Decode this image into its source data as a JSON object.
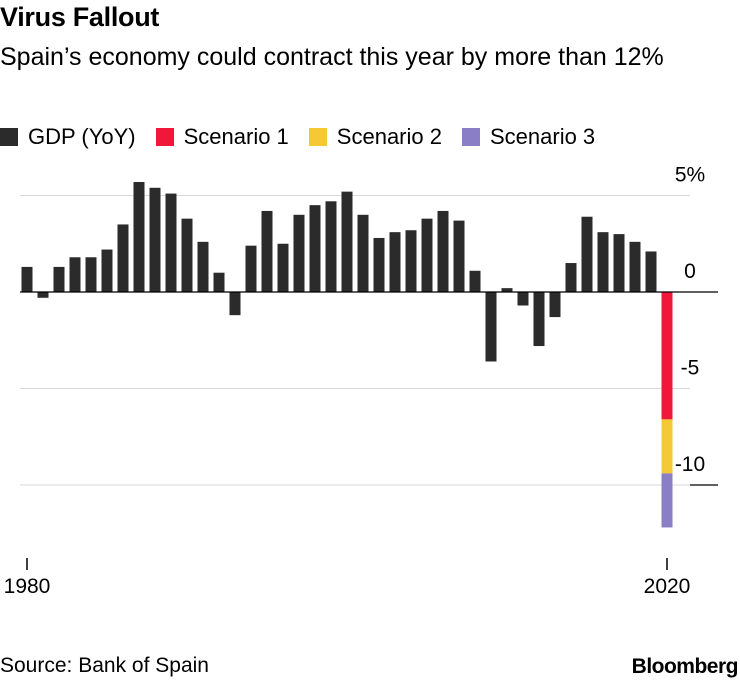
{
  "title": "Virus Fallout",
  "subtitle": "Spain’s economy could contract this year by more than 12%",
  "source": "Source: Bank of Spain",
  "brand": "Bloomberg",
  "chart_data": {
    "type": "bar",
    "stacked": true,
    "title": "Virus Fallout",
    "xlabel": "",
    "ylabel": "",
    "ylim": [
      -14,
      6
    ],
    "y_ticks": [
      5,
      0,
      -5,
      -10
    ],
    "y_tick_labels": [
      "5%",
      "0",
      "-5",
      "-10"
    ],
    "x_tick_labels": [
      "1980",
      "2020"
    ],
    "x": [
      1980,
      1981,
      1982,
      1983,
      1984,
      1985,
      1986,
      1987,
      1988,
      1989,
      1990,
      1991,
      1992,
      1993,
      1994,
      1995,
      1996,
      1997,
      1998,
      1999,
      2000,
      2001,
      2002,
      2003,
      2004,
      2005,
      2006,
      2007,
      2008,
      2009,
      2010,
      2011,
      2012,
      2013,
      2014,
      2015,
      2016,
      2017,
      2018,
      2019,
      2020
    ],
    "series": [
      {
        "name": "GDP (YoY)",
        "color": "#2b2b2b",
        "values": [
          1.3,
          -0.3,
          1.3,
          1.8,
          1.8,
          2.2,
          3.5,
          5.7,
          5.4,
          5.1,
          3.8,
          2.6,
          1.0,
          -1.2,
          2.4,
          4.2,
          2.5,
          4.0,
          4.5,
          4.7,
          5.2,
          4.0,
          2.8,
          3.1,
          3.2,
          3.8,
          4.2,
          3.7,
          1.1,
          -3.6,
          0.2,
          -0.7,
          -2.8,
          -1.3,
          1.5,
          3.9,
          3.1,
          3.0,
          2.6,
          2.1,
          null
        ]
      },
      {
        "name": "Scenario 1",
        "color": "#f0173a",
        "values": [
          null,
          null,
          null,
          null,
          null,
          null,
          null,
          null,
          null,
          null,
          null,
          null,
          null,
          null,
          null,
          null,
          null,
          null,
          null,
          null,
          null,
          null,
          null,
          null,
          null,
          null,
          null,
          null,
          null,
          null,
          null,
          null,
          null,
          null,
          null,
          null,
          null,
          null,
          null,
          null,
          -6.6
        ]
      },
      {
        "name": "Scenario 2",
        "color": "#f5c935",
        "values": [
          null,
          null,
          null,
          null,
          null,
          null,
          null,
          null,
          null,
          null,
          null,
          null,
          null,
          null,
          null,
          null,
          null,
          null,
          null,
          null,
          null,
          null,
          null,
          null,
          null,
          null,
          null,
          null,
          null,
          null,
          null,
          null,
          null,
          null,
          null,
          null,
          null,
          null,
          null,
          null,
          -2.8
        ]
      },
      {
        "name": "Scenario 3",
        "color": "#8a7fc6",
        "values": [
          null,
          null,
          null,
          null,
          null,
          null,
          null,
          null,
          null,
          null,
          null,
          null,
          null,
          null,
          null,
          null,
          null,
          null,
          null,
          null,
          null,
          null,
          null,
          null,
          null,
          null,
          null,
          null,
          null,
          null,
          null,
          null,
          null,
          null,
          null,
          null,
          null,
          null,
          null,
          null,
          -2.8
        ]
      }
    ]
  }
}
